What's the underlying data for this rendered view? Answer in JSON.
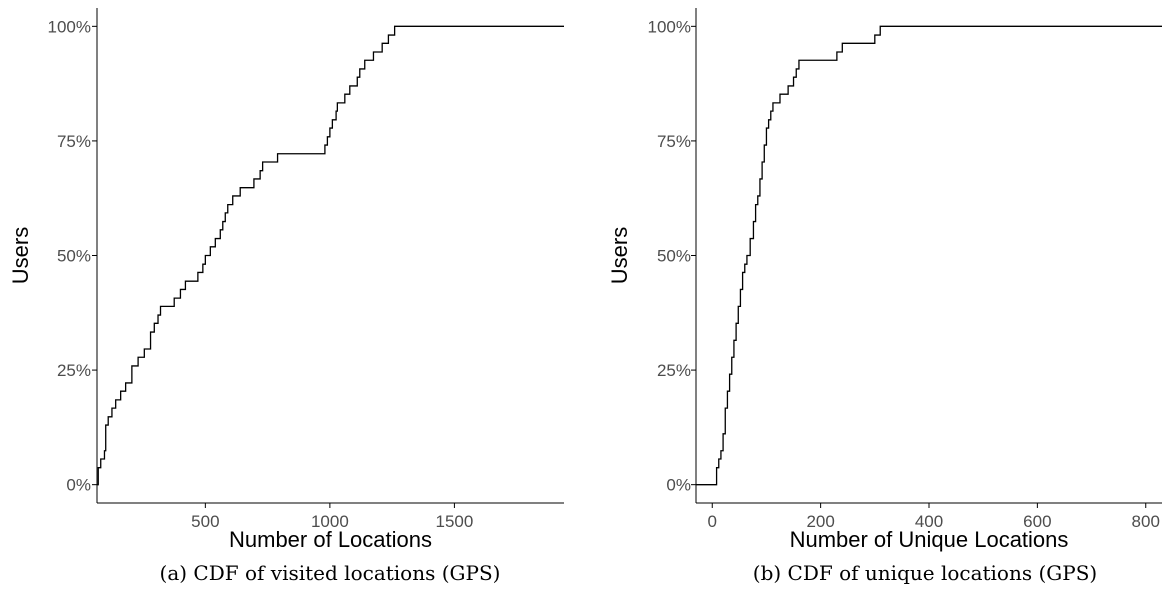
{
  "chart_data": [
    {
      "type": "line",
      "step": true,
      "caption": "(a) CDF of visited locations (GPS)",
      "xlabel": "Number of Locations",
      "ylabel": "Users",
      "xlim": [
        65,
        1940
      ],
      "ylim": [
        -0.04,
        1.04
      ],
      "xticks": [
        500,
        1000,
        1500
      ],
      "xtick_labels": [
        "500",
        "1000",
        "1500"
      ],
      "yticks": [
        0,
        0.25,
        0.5,
        0.75,
        1
      ],
      "ytick_labels": [
        "0%",
        "25%",
        "50%",
        "75%",
        "100%"
      ],
      "grid": false,
      "legend": "none",
      "x": [
        65,
        70,
        80,
        95,
        100,
        110,
        125,
        140,
        160,
        180,
        205,
        230,
        255,
        280,
        295,
        310,
        320,
        375,
        400,
        420,
        470,
        490,
        500,
        520,
        540,
        560,
        570,
        580,
        590,
        610,
        640,
        695,
        720,
        730,
        790,
        980,
        990,
        1000,
        1010,
        1025,
        1030,
        1060,
        1080,
        1110,
        1120,
        1140,
        1175,
        1210,
        1235,
        1260,
        1275,
        1290,
        1330,
        1700,
        1760,
        1930,
        1940
      ],
      "y": [
        0.0,
        0.037,
        0.056,
        0.074,
        0.13,
        0.148,
        0.167,
        0.185,
        0.204,
        0.222,
        0.259,
        0.278,
        0.296,
        0.333,
        0.352,
        0.37,
        0.389,
        0.407,
        0.426,
        0.444,
        0.463,
        0.481,
        0.5,
        0.519,
        0.537,
        0.556,
        0.574,
        0.593,
        0.611,
        0.63,
        0.648,
        0.667,
        0.685,
        0.704,
        0.722,
        0.741,
        0.759,
        0.778,
        0.796,
        0.815,
        0.833,
        0.852,
        0.87,
        0.889,
        0.907,
        0.926,
        0.944,
        0.963,
        0.981,
        1.0,
        1.0,
        1.0,
        1.0,
        1.0,
        1.0,
        1.0,
        1.0
      ]
    },
    {
      "type": "line",
      "step": true,
      "caption": "(b) CDF of unique locations (GPS)",
      "xlabel": "Number of Unique Locations",
      "ylabel": "Users",
      "xlim": [
        -30,
        830
      ],
      "ylim": [
        -0.04,
        1.04
      ],
      "xticks": [
        0,
        200,
        400,
        600,
        800
      ],
      "xtick_labels": [
        "0",
        "200",
        "400",
        "600",
        "800"
      ],
      "yticks": [
        0,
        0.25,
        0.5,
        0.75,
        1
      ],
      "ytick_labels": [
        "0%",
        "25%",
        "50%",
        "75%",
        "100%"
      ],
      "grid": false,
      "legend": "none",
      "x": [
        -30,
        3,
        8,
        12,
        16,
        20,
        24,
        28,
        32,
        36,
        40,
        44,
        48,
        52,
        56,
        60,
        64,
        70,
        76,
        80,
        84,
        88,
        92,
        96,
        100,
        104,
        108,
        112,
        125,
        140,
        150,
        155,
        160,
        230,
        240,
        300,
        310,
        320,
        330,
        340,
        780,
        790,
        830
      ],
      "y": [
        0.0,
        0.0,
        0.037,
        0.056,
        0.074,
        0.111,
        0.167,
        0.204,
        0.241,
        0.278,
        0.315,
        0.352,
        0.389,
        0.426,
        0.463,
        0.481,
        0.5,
        0.537,
        0.574,
        0.611,
        0.63,
        0.667,
        0.704,
        0.741,
        0.778,
        0.796,
        0.815,
        0.833,
        0.852,
        0.87,
        0.889,
        0.907,
        0.926,
        0.944,
        0.963,
        0.981,
        1.0,
        1.0,
        1.0,
        1.0,
        1.0,
        1.0,
        1.0
      ]
    }
  ]
}
